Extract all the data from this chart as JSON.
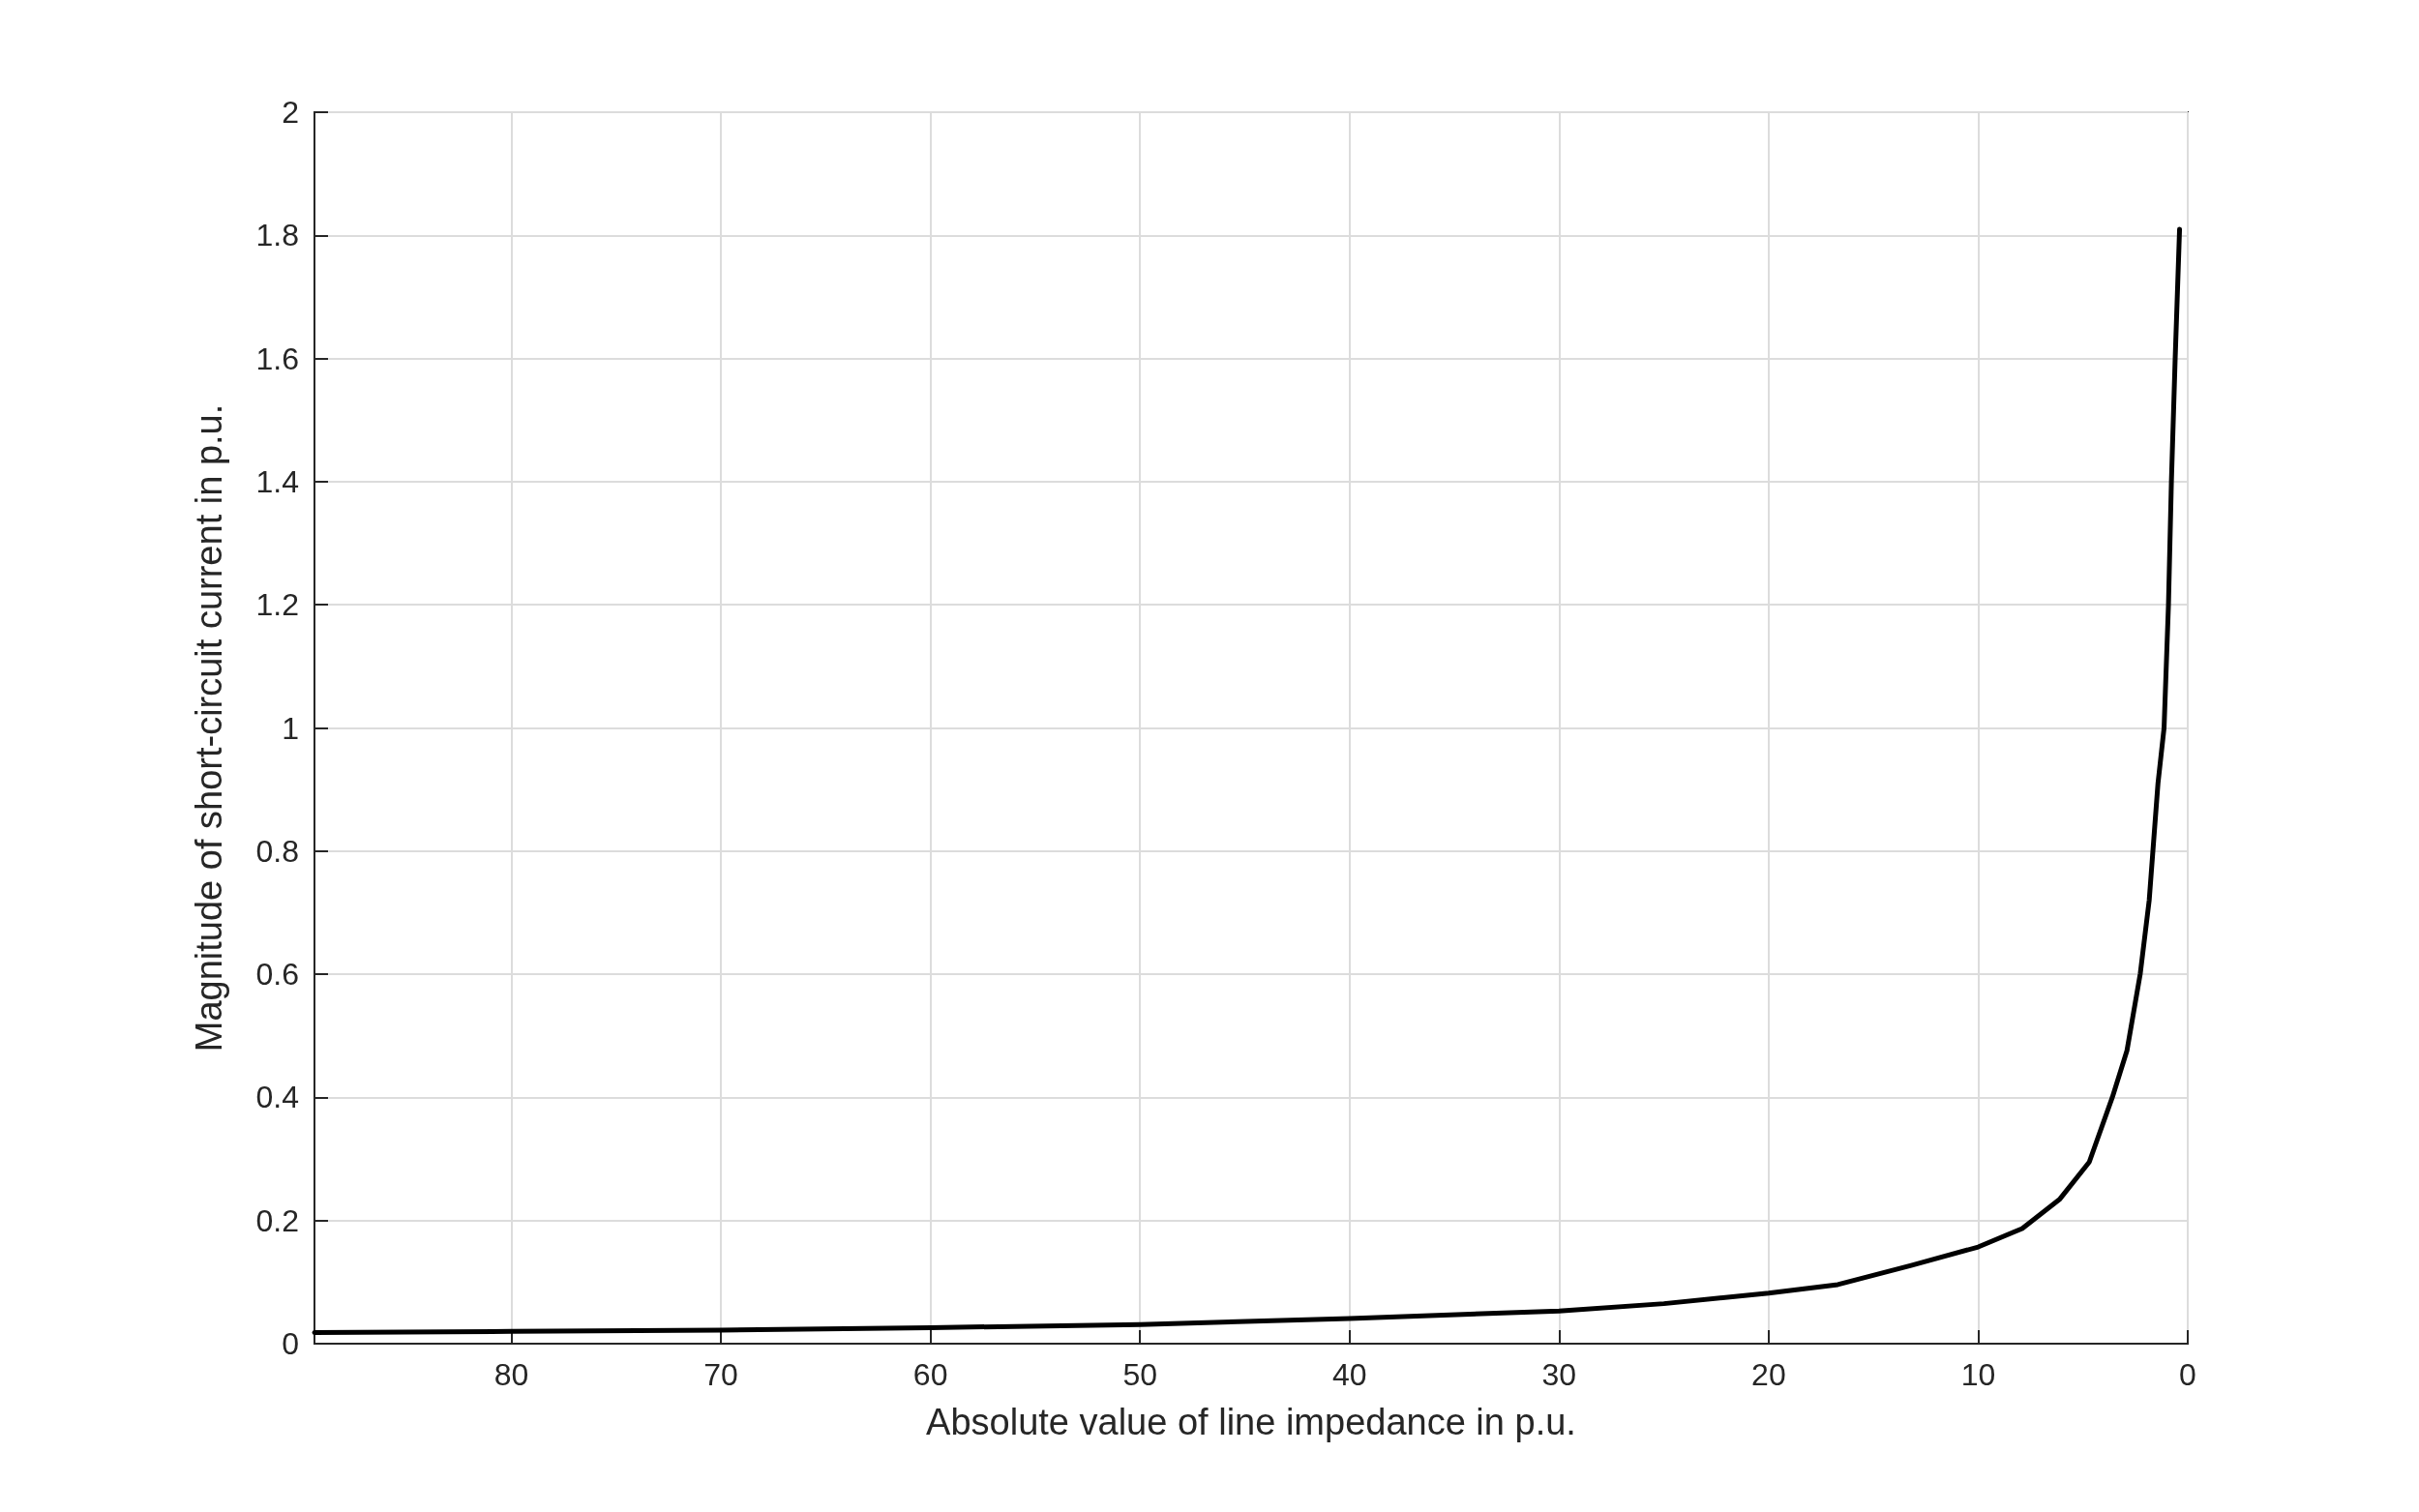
{
  "chart_data": {
    "type": "line",
    "xlabel": "Absolute value of line impedance in p.u.",
    "ylabel": "Magnitude of short-circuit current in p.u.",
    "x": [
      89.4,
      80,
      70,
      60,
      50,
      40,
      30,
      25,
      20,
      16.7,
      13.2,
      10,
      7.9,
      6.1,
      4.7,
      3.6,
      2.9,
      2.27,
      1.84,
      1.42,
      1.13,
      0.92,
      0.78,
      0.6,
      0.39
    ],
    "series": [
      {
        "color": "#000000",
        "values": [
          0.018,
          0.02,
          0.022,
          0.026,
          0.031,
          0.041,
          0.053,
          0.065,
          0.082,
          0.096,
          0.127,
          0.157,
          0.187,
          0.235,
          0.295,
          0.4,
          0.476,
          0.6,
          0.72,
          0.91,
          1.0,
          1.2,
          1.4,
          1.6,
          1.81
        ]
      }
    ],
    "xlim": [
      89.4,
      0
    ],
    "xticks": [
      80,
      70,
      60,
      50,
      40,
      30,
      20,
      10,
      0
    ],
    "ylim": [
      0,
      2
    ],
    "yticks": [
      0,
      0.2,
      0.4,
      0.6,
      0.8,
      1,
      1.2,
      1.4,
      1.6,
      1.8,
      2
    ],
    "grid": true,
    "marker": "none",
    "line_style": "solid"
  }
}
